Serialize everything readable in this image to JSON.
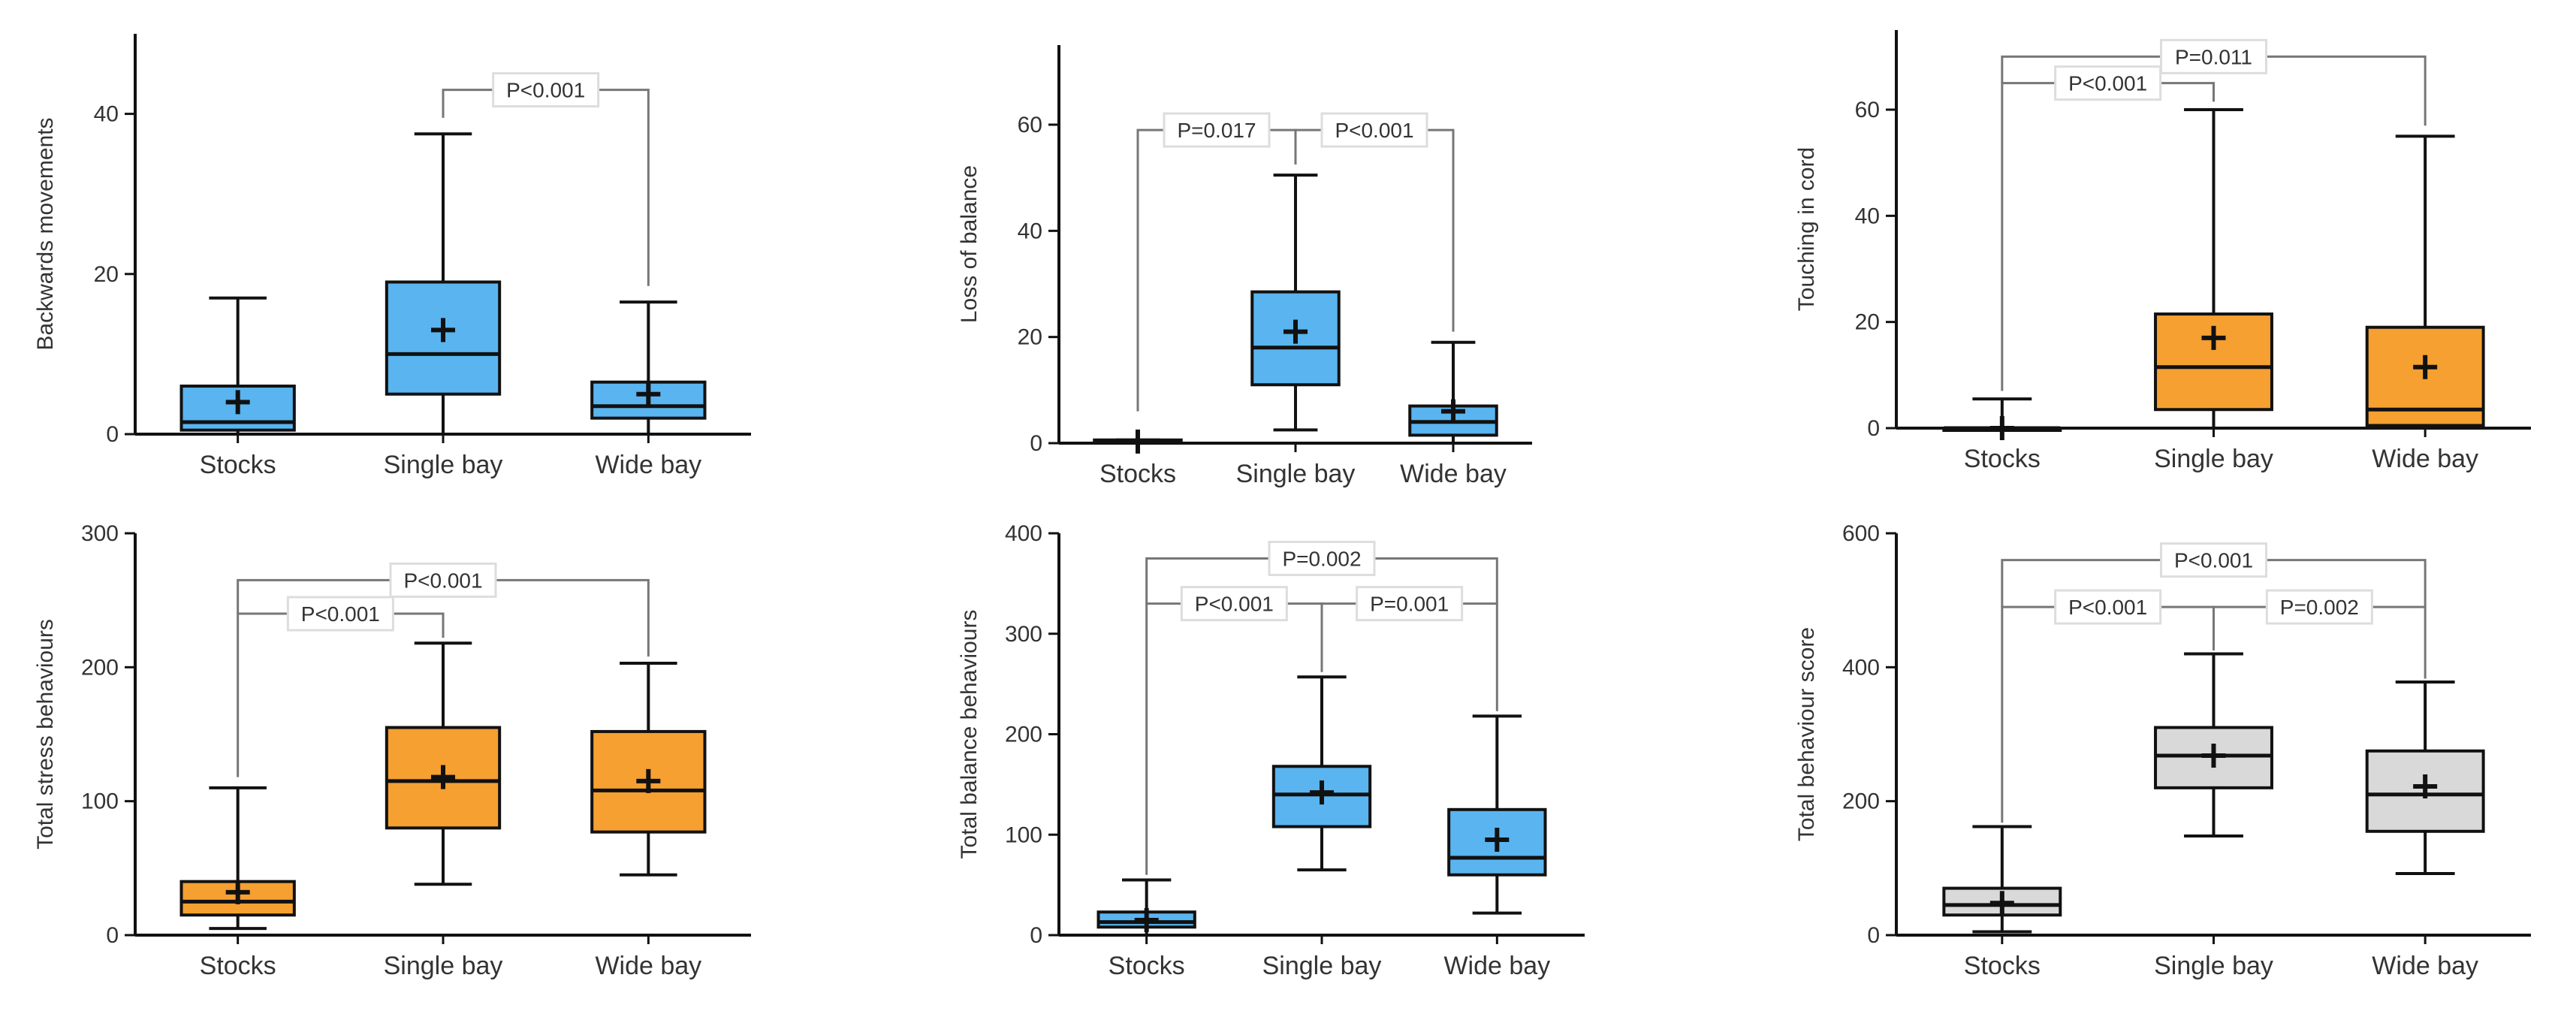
{
  "chart_data": [
    {
      "type": "box",
      "ylabel": "Backwards movements",
      "ylim": [
        0,
        50
      ],
      "yticks": [
        0,
        20,
        40
      ],
      "categories": [
        "Stocks",
        "Single bay",
        "Wide bay"
      ],
      "colors": [
        "#5ab4ef",
        "#5ab4ef",
        "#5ab4ef"
      ],
      "boxes": [
        {
          "min": 0,
          "q1": 0.5,
          "median": 1.5,
          "q3": 6,
          "max": 17,
          "mean": 4
        },
        {
          "min": 0,
          "q1": 5,
          "median": 10,
          "q3": 19,
          "max": 37.5,
          "mean": 13
        },
        {
          "min": 0,
          "q1": 2,
          "median": 3.5,
          "q3": 6.5,
          "max": 16.5,
          "mean": 5
        }
      ],
      "comparisons": [
        {
          "from": 1,
          "to": 2,
          "label": "P<0.001",
          "y": 43,
          "fromEnd": 39.5,
          "toEnd": 18.5
        }
      ]
    },
    {
      "type": "box",
      "ylabel": "Loss of balance",
      "ylim": [
        0,
        75
      ],
      "yticks": [
        0,
        20,
        40,
        60
      ],
      "categories": [
        "Stocks",
        "Single bay",
        "Wide bay"
      ],
      "colors": [
        "#5ab4ef",
        "#5ab4ef",
        "#5ab4ef"
      ],
      "boxes": [
        {
          "min": 0,
          "q1": 0,
          "median": 0.2,
          "q3": 0.6,
          "max": 0.6,
          "mean": 0.3
        },
        {
          "min": 2.5,
          "q1": 11,
          "median": 18,
          "q3": 28.5,
          "max": 50.5,
          "mean": 21
        },
        {
          "min": 0,
          "q1": 1.5,
          "median": 4,
          "q3": 7,
          "max": 19,
          "mean": 6
        }
      ],
      "comparisons": [
        {
          "from": 0,
          "to": 1,
          "label": "P=0.017",
          "y": 59,
          "fromEnd": 6,
          "toEnd": 52.5
        },
        {
          "from": 1,
          "to": 2,
          "label": "P<0.001",
          "y": 59,
          "fromEnd": 52.5,
          "toEnd": 21
        }
      ]
    },
    {
      "type": "box",
      "ylabel": "Touching in cord",
      "ylim": [
        0,
        75
      ],
      "yticks": [
        0,
        20,
        40,
        60
      ],
      "categories": [
        "Stocks",
        "Single bay",
        "Wide bay"
      ],
      "colors": [
        "#f5a031",
        "#f5a031",
        "#f5a031"
      ],
      "boxes": [
        {
          "min": 0,
          "q1": 0,
          "median": 0,
          "q3": 0,
          "max": 5.5,
          "mean": 0
        },
        {
          "min": 0,
          "q1": 3.5,
          "median": 11.5,
          "q3": 21.5,
          "max": 60,
          "mean": 17
        },
        {
          "min": 0,
          "q1": 0.5,
          "median": 3.5,
          "q3": 19,
          "max": 55,
          "mean": 11.5
        }
      ],
      "comparisons": [
        {
          "from": 0,
          "to": 1,
          "label": "P<0.001",
          "y": 65,
          "fromEnd": 7,
          "toEnd": 61.5
        },
        {
          "from": 0,
          "to": 2,
          "label": "P=0.011",
          "y": 70,
          "fromEnd": 65,
          "toEnd": 57
        }
      ]
    },
    {
      "type": "box",
      "ylabel": "Total stress behaviours",
      "ylim": [
        0,
        300
      ],
      "yticks": [
        0,
        100,
        200,
        300
      ],
      "categories": [
        "Stocks",
        "Single bay",
        "Wide bay"
      ],
      "colors": [
        "#f5a031",
        "#f5a031",
        "#f5a031"
      ],
      "boxes": [
        {
          "min": 5,
          "q1": 15,
          "median": 25,
          "q3": 40,
          "max": 110,
          "mean": 32
        },
        {
          "min": 38,
          "q1": 80,
          "median": 115,
          "q3": 155,
          "max": 218,
          "mean": 118
        },
        {
          "min": 45,
          "q1": 77,
          "median": 108,
          "q3": 152,
          "max": 203,
          "mean": 115
        }
      ],
      "comparisons": [
        {
          "from": 0,
          "to": 1,
          "label": "P<0.001",
          "y": 240,
          "fromEnd": 118,
          "toEnd": 222
        },
        {
          "from": 0,
          "to": 2,
          "label": "P<0.001",
          "y": 265,
          "fromEnd": 240,
          "toEnd": 208
        }
      ]
    },
    {
      "type": "box",
      "ylabel": "Total balance behaviours",
      "ylim": [
        0,
        400
      ],
      "yticks": [
        0,
        100,
        200,
        300,
        400
      ],
      "categories": [
        "Stocks",
        "Single bay",
        "Wide bay"
      ],
      "colors": [
        "#5ab4ef",
        "#5ab4ef",
        "#5ab4ef"
      ],
      "boxes": [
        {
          "min": 0,
          "q1": 8,
          "median": 13,
          "q3": 23,
          "max": 55,
          "mean": 15
        },
        {
          "min": 65,
          "q1": 108,
          "median": 140,
          "q3": 168,
          "max": 257,
          "mean": 142
        },
        {
          "min": 22,
          "q1": 60,
          "median": 77,
          "q3": 125,
          "max": 218,
          "mean": 95
        }
      ],
      "comparisons": [
        {
          "from": 0,
          "to": 1,
          "label": "P<0.001",
          "y": 330,
          "fromEnd": 60,
          "toEnd": 262
        },
        {
          "from": 1,
          "to": 2,
          "label": "P=0.001",
          "y": 330,
          "fromEnd": 262,
          "toEnd": 223
        },
        {
          "from": 0,
          "to": 2,
          "label": "P=0.002",
          "y": 375,
          "fromEnd": 330,
          "toEnd": 330
        }
      ]
    },
    {
      "type": "box",
      "ylabel": "Total behaviour score",
      "ylim": [
        0,
        600
      ],
      "yticks": [
        0,
        200,
        400,
        600
      ],
      "categories": [
        "Stocks",
        "Single bay",
        "Wide bay"
      ],
      "colors": [
        "#d9d9d9",
        "#d9d9d9",
        "#d9d9d9"
      ],
      "boxes": [
        {
          "min": 5,
          "q1": 30,
          "median": 45,
          "q3": 70,
          "max": 162,
          "mean": 48
        },
        {
          "min": 148,
          "q1": 220,
          "median": 268,
          "q3": 310,
          "max": 420,
          "mean": 268
        },
        {
          "min": 92,
          "q1": 155,
          "median": 210,
          "q3": 275,
          "max": 378,
          "mean": 222
        }
      ],
      "comparisons": [
        {
          "from": 0,
          "to": 1,
          "label": "P<0.001",
          "y": 490,
          "fromEnd": 168,
          "toEnd": 425
        },
        {
          "from": 1,
          "to": 2,
          "label": "P=0.002",
          "y": 490,
          "fromEnd": 425,
          "toEnd": 383
        },
        {
          "from": 0,
          "to": 2,
          "label": "P<0.001",
          "y": 560,
          "fromEnd": 490,
          "toEnd": 490
        }
      ]
    }
  ]
}
